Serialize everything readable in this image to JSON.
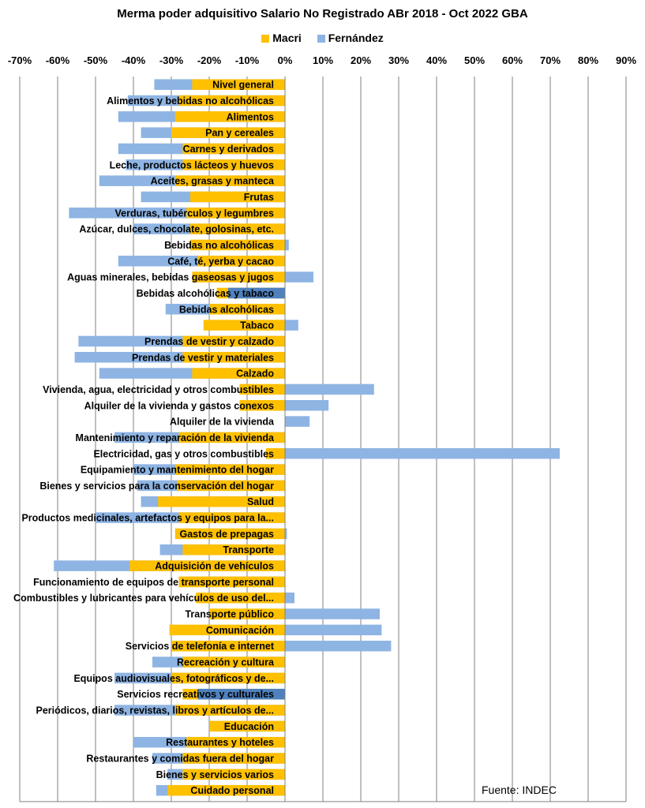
{
  "chart_data": {
    "type": "bar",
    "orientation": "horizontal",
    "title": "Merma poder adquisitivo Salario No Registrado ABr 2018 - Oct 2022 GBA",
    "source": "Fuente: INDEC",
    "xlim": [
      -70,
      90
    ],
    "xticks": [
      -70,
      -60,
      -50,
      -40,
      -30,
      -20,
      -10,
      0,
      10,
      20,
      30,
      40,
      50,
      60,
      70,
      80,
      90
    ],
    "xtick_labels": [
      "-70%",
      "-60%",
      "-50%",
      "-40%",
      "-30%",
      "-20%",
      "-10%",
      "0%",
      "10%",
      "20%",
      "30%",
      "40%",
      "50%",
      "60%",
      "70%",
      "80%",
      "90%"
    ],
    "grid": true,
    "legend_position": "top",
    "colors": {
      "macri": "#FFC000",
      "fernandez": "#8EB4E3",
      "overlap": "#4F81BD",
      "grid": "#808080"
    },
    "categories": [
      "Nivel general",
      "Alimentos y bebidas no alcohólicas",
      "Alimentos",
      "Pan y cereales",
      "Carnes y derivados",
      "Leche, productos lácteos y huevos",
      "Aceites, grasas y manteca",
      "Frutas",
      "Verduras, tubérculos y legumbres",
      "Azúcar, dulces, chocolate, golosinas, etc.",
      "Bebidas no alcohólicas",
      "Café, té, yerba y cacao",
      "Aguas minerales, bebidas gaseosas y jugos",
      "Bebidas alcohólicas y tabaco",
      "Bebidas alcohólicas",
      "Tabaco",
      "Prendas de vestir y calzado",
      "Prendas de vestir y materiales",
      "Calzado",
      "Vivienda, agua, electricidad y otros combustibles",
      "Alquiler de la vivienda y gastos conexos",
      "Alquiler de la vivienda",
      "Mantenimiento y reparación de la vivienda",
      "Electricidad, gas y otros combustibles",
      "Equipamiento y mantenimiento del hogar",
      "Bienes y servicios para la conservación del hogar",
      "Salud",
      "Productos medicinales, artefactos y equipos para la...",
      "Gastos de prepagas",
      "Transporte",
      "Adquisición de vehículos",
      "Funcionamiento de equipos de transporte personal",
      "Combustibles y lubricantes para vehículos de uso del...",
      "Transporte público",
      "Comunicación",
      "Servicios  de telefonía e internet",
      "Recreación y cultura",
      "Equipos audiovisuales, fotográficos y de...",
      "Servicios recreativos y culturales",
      "Periódicos, diarios, revistas, libros y artículos de...",
      "Educación",
      "Restaurantes y hoteles",
      "Restaurantes y comidas fuera del hogar",
      "Bienes y servicios varios",
      "Cuidado personal"
    ],
    "series": [
      {
        "name": "Macri",
        "values": [
          -24.5,
          -28,
          -29,
          -30,
          -27,
          -27,
          -29,
          -25,
          -26,
          -25,
          -25,
          -23,
          -24.5,
          -18,
          -20,
          -21.5,
          -27,
          -27,
          -24.5,
          -12,
          -12,
          0,
          -28,
          -5,
          -29,
          -28.5,
          -33.5,
          -28,
          -29,
          -27,
          -41,
          -28,
          -23.5,
          -20,
          -30.5,
          -30,
          -27,
          -30,
          -27,
          -29,
          -20,
          -26,
          -27,
          -27,
          -31
        ]
      },
      {
        "name": "Fernández",
        "values": [
          -34.5,
          -41.5,
          -44,
          -38,
          -44,
          -42,
          -49,
          -38,
          -57,
          -40,
          1,
          -44,
          7.5,
          -15,
          -31.5,
          3.5,
          -54.5,
          -55.5,
          -49,
          23.5,
          11.5,
          6.5,
          -45,
          72.5,
          -40,
          -39,
          -38,
          -50,
          0.5,
          -33,
          -61,
          -28,
          2.5,
          25,
          25.5,
          28,
          -35,
          -45,
          -23,
          -45,
          -20,
          -40,
          -35,
          -31,
          -34
        ]
      }
    ]
  }
}
